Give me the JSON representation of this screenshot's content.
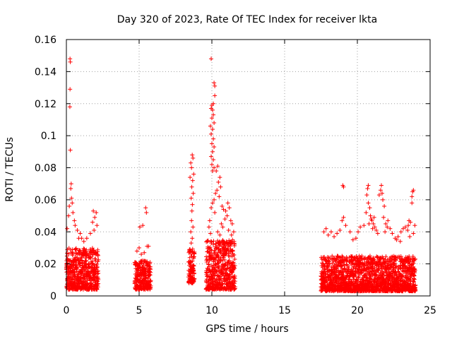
{
  "chart_data": {
    "type": "scatter",
    "title": "Day 320 of 2023, Rate Of TEC Index for receiver lkta",
    "xlabel": "GPS time / hours",
    "ylabel": "ROTI / TECUs",
    "xlim": [
      0,
      25
    ],
    "ylim": [
      0,
      0.16
    ],
    "x_ticks": [
      0,
      5,
      10,
      15,
      20,
      25
    ],
    "x_tick_labels": [
      "0",
      "5",
      "10",
      "15",
      "20",
      "25"
    ],
    "y_ticks": [
      0,
      0.02,
      0.04,
      0.06,
      0.08,
      0.1,
      0.12,
      0.14,
      0.16
    ],
    "y_tick_labels": [
      "0",
      "0.02",
      "0.04",
      "0.06",
      "0.08",
      "0.1",
      "0.12",
      "0.14",
      "0.16"
    ],
    "grid": true,
    "marker": "plus",
    "colors": {
      "series": "#ff0000",
      "grid": "#a0a0a0",
      "axis": "#000000"
    },
    "series": [
      {
        "segments": [
          {
            "x_start": 0.0,
            "x_end": 2.2,
            "base_low": 0.004,
            "base_high": 0.03
          },
          {
            "x_start": 4.7,
            "x_end": 5.8,
            "base_low": 0.004,
            "base_high": 0.022
          },
          {
            "x_start": 8.4,
            "x_end": 8.8,
            "base_low": 0.008,
            "base_high": 0.03
          },
          {
            "x_start": 9.6,
            "x_end": 11.6,
            "base_low": 0.004,
            "base_high": 0.035
          },
          {
            "x_start": 17.5,
            "x_end": 24.0,
            "base_low": 0.003,
            "base_high": 0.025
          }
        ],
        "points": [
          [
            0.25,
            0.148
          ],
          [
            0.27,
            0.146
          ],
          [
            0.25,
            0.129
          ],
          [
            0.24,
            0.118
          ],
          [
            0.27,
            0.091
          ],
          [
            0.33,
            0.07
          ],
          [
            0.3,
            0.067
          ],
          [
            0.35,
            0.061
          ],
          [
            0.4,
            0.058
          ],
          [
            0.2,
            0.056
          ],
          [
            0.45,
            0.052
          ],
          [
            0.15,
            0.05
          ],
          [
            0.55,
            0.047
          ],
          [
            0.05,
            0.042
          ],
          [
            0.6,
            0.044
          ],
          [
            0.75,
            0.041
          ],
          [
            0.95,
            0.039
          ],
          [
            1.05,
            0.036
          ],
          [
            1.85,
            0.053
          ],
          [
            2.05,
            0.052
          ],
          [
            1.95,
            0.049
          ],
          [
            1.8,
            0.046
          ],
          [
            2.1,
            0.044
          ],
          [
            1.9,
            0.041
          ],
          [
            1.65,
            0.039
          ],
          [
            1.4,
            0.036
          ],
          [
            1.2,
            0.034
          ],
          [
            0.85,
            0.036
          ],
          [
            5.0,
            0.03
          ],
          [
            4.85,
            0.028
          ],
          [
            5.05,
            0.043
          ],
          [
            5.25,
            0.044
          ],
          [
            5.45,
            0.055
          ],
          [
            5.5,
            0.052
          ],
          [
            5.55,
            0.031
          ],
          [
            5.65,
            0.031
          ],
          [
            5.35,
            0.027
          ],
          [
            5.15,
            0.026
          ],
          [
            8.65,
            0.088
          ],
          [
            8.7,
            0.086
          ],
          [
            8.55,
            0.083
          ],
          [
            8.6,
            0.08
          ],
          [
            8.75,
            0.076
          ],
          [
            8.5,
            0.074
          ],
          [
            8.68,
            0.072
          ],
          [
            8.62,
            0.068
          ],
          [
            8.72,
            0.064
          ],
          [
            8.58,
            0.061
          ],
          [
            8.66,
            0.057
          ],
          [
            8.63,
            0.053
          ],
          [
            8.6,
            0.047
          ],
          [
            8.7,
            0.043
          ],
          [
            8.55,
            0.04
          ],
          [
            8.65,
            0.036
          ],
          [
            8.58,
            0.033
          ],
          [
            9.95,
            0.148
          ],
          [
            10.15,
            0.133
          ],
          [
            10.2,
            0.131
          ],
          [
            10.2,
            0.125
          ],
          [
            10.1,
            0.12
          ],
          [
            10.0,
            0.119
          ],
          [
            9.95,
            0.117
          ],
          [
            10.05,
            0.116
          ],
          [
            10.1,
            0.113
          ],
          [
            10.0,
            0.111
          ],
          [
            10.15,
            0.108
          ],
          [
            9.9,
            0.106
          ],
          [
            10.05,
            0.104
          ],
          [
            9.95,
            0.101
          ],
          [
            10.1,
            0.098
          ],
          [
            10.0,
            0.095
          ],
          [
            10.15,
            0.093
          ],
          [
            10.05,
            0.09
          ],
          [
            9.95,
            0.087
          ],
          [
            10.1,
            0.085
          ],
          [
            10.0,
            0.082
          ],
          [
            10.15,
            0.08
          ],
          [
            10.05,
            0.078
          ],
          [
            10.3,
            0.078
          ],
          [
            10.4,
            0.081
          ],
          [
            10.55,
            0.074
          ],
          [
            10.45,
            0.071
          ],
          [
            10.6,
            0.068
          ],
          [
            10.35,
            0.066
          ],
          [
            10.25,
            0.064
          ],
          [
            10.5,
            0.062
          ],
          [
            10.15,
            0.06
          ],
          [
            10.05,
            0.058
          ],
          [
            9.95,
            0.055
          ],
          [
            10.2,
            0.052
          ],
          [
            10.7,
            0.056
          ],
          [
            10.8,
            0.054
          ],
          [
            10.95,
            0.053
          ],
          [
            11.1,
            0.058
          ],
          [
            11.2,
            0.055
          ],
          [
            11.05,
            0.05
          ],
          [
            10.9,
            0.048
          ],
          [
            11.3,
            0.047
          ],
          [
            11.4,
            0.045
          ],
          [
            9.85,
            0.047
          ],
          [
            9.8,
            0.043
          ],
          [
            10.65,
            0.045
          ],
          [
            10.75,
            0.043
          ],
          [
            11.15,
            0.041
          ],
          [
            11.5,
            0.04
          ],
          [
            10.4,
            0.04
          ],
          [
            10.55,
            0.038
          ],
          [
            9.9,
            0.039
          ],
          [
            11.35,
            0.038
          ],
          [
            17.7,
            0.04
          ],
          [
            17.85,
            0.042
          ],
          [
            18.0,
            0.038
          ],
          [
            18.2,
            0.04
          ],
          [
            18.4,
            0.037
          ],
          [
            18.6,
            0.039
          ],
          [
            18.8,
            0.041
          ],
          [
            19.0,
            0.069
          ],
          [
            19.05,
            0.068
          ],
          [
            18.95,
            0.047
          ],
          [
            19.05,
            0.049
          ],
          [
            19.2,
            0.044
          ],
          [
            19.5,
            0.04
          ],
          [
            19.7,
            0.035
          ],
          [
            19.9,
            0.036
          ],
          [
            20.05,
            0.04
          ],
          [
            20.2,
            0.043
          ],
          [
            20.45,
            0.044
          ],
          [
            20.75,
            0.069
          ],
          [
            20.7,
            0.067
          ],
          [
            20.65,
            0.063
          ],
          [
            20.75,
            0.058
          ],
          [
            20.85,
            0.055
          ],
          [
            20.6,
            0.052
          ],
          [
            20.9,
            0.05
          ],
          [
            21.0,
            0.047
          ],
          [
            21.1,
            0.045
          ],
          [
            21.2,
            0.043
          ],
          [
            21.3,
            0.041
          ],
          [
            21.4,
            0.039
          ],
          [
            21.05,
            0.042
          ],
          [
            20.95,
            0.048
          ],
          [
            21.15,
            0.049
          ],
          [
            20.8,
            0.045
          ],
          [
            21.65,
            0.069
          ],
          [
            21.6,
            0.066
          ],
          [
            21.7,
            0.064
          ],
          [
            21.5,
            0.063
          ],
          [
            21.75,
            0.06
          ],
          [
            21.85,
            0.056
          ],
          [
            21.8,
            0.049
          ],
          [
            21.95,
            0.045
          ],
          [
            22.1,
            0.047
          ],
          [
            22.05,
            0.043
          ],
          [
            21.9,
            0.04
          ],
          [
            22.25,
            0.042
          ],
          [
            22.4,
            0.039
          ],
          [
            22.6,
            0.036
          ],
          [
            22.8,
            0.037
          ],
          [
            23.0,
            0.04
          ],
          [
            23.15,
            0.042
          ],
          [
            23.3,
            0.043
          ],
          [
            23.45,
            0.041
          ],
          [
            23.55,
            0.047
          ],
          [
            23.65,
            0.046
          ],
          [
            23.5,
            0.044
          ],
          [
            23.75,
            0.058
          ],
          [
            23.8,
            0.065
          ],
          [
            23.85,
            0.066
          ],
          [
            23.75,
            0.062
          ],
          [
            23.95,
            0.044
          ],
          [
            23.85,
            0.039
          ],
          [
            23.6,
            0.037
          ],
          [
            22.7,
            0.035
          ],
          [
            22.95,
            0.034
          ]
        ]
      }
    ]
  }
}
